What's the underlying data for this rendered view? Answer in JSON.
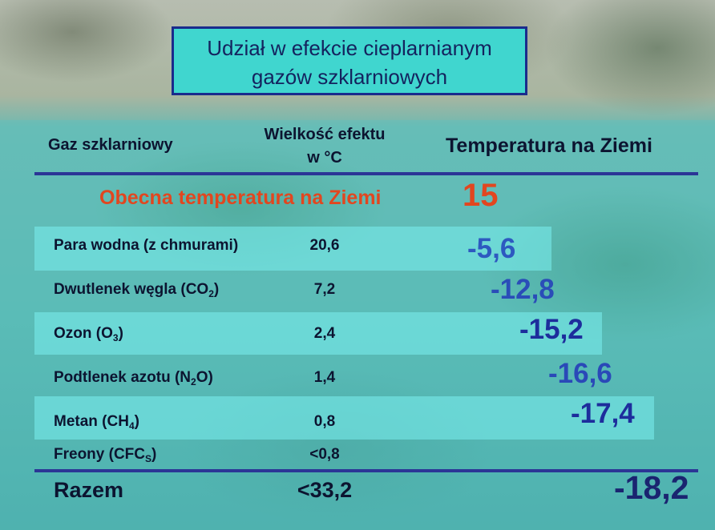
{
  "title": {
    "line1": "Udział w efekcie cieplarnianym",
    "line2": "gazów szklarniowych"
  },
  "header": {
    "gas": "Gaz szklarniowy",
    "effect_line1": "Wielkość efektu",
    "effect_line2": "w °C",
    "temperature": "Temperatura na Ziemi"
  },
  "current": {
    "label": "Obecna temperatura na Ziemi",
    "value": "15"
  },
  "rows": [
    {
      "gas": "Para wodna (z chmurami)",
      "effect": "20,6",
      "temp": "-5,6"
    },
    {
      "gas_pre": "Dwutlenek węgla (CO",
      "gas_sub": "2",
      "gas_post": ")",
      "effect": "7,2",
      "temp": "-12,8"
    },
    {
      "gas_pre": "Ozon  (O",
      "gas_sub": "3",
      "gas_post": ")",
      "effect": "2,4",
      "temp": "-15,2"
    },
    {
      "gas_pre": "Podtlenek azotu (N",
      "gas_sub": "2",
      "gas_post": "O)",
      "effect": "1,4",
      "temp": "-16,6"
    },
    {
      "gas_pre": "Metan (CH",
      "gas_sub": "4",
      "gas_post": ")",
      "effect": "0,8",
      "temp": "-17,4"
    },
    {
      "gas_pre": "Freony (CFC",
      "gas_sub": "S",
      "gas_post": ")",
      "effect": "<0,8",
      "temp": ""
    }
  ],
  "total": {
    "label": "Razem",
    "effect": "<33,2",
    "temp": "-18,2"
  },
  "colors": {
    "current": "#e2461f",
    "temp": "#2d59c0",
    "temp_dark": "#1d2d9c",
    "total": "#1a2470"
  }
}
